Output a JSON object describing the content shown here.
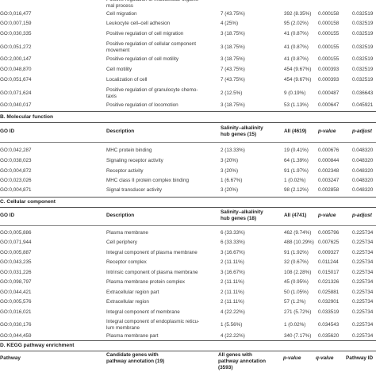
{
  "section_a": {
    "rows": [
      {
        "id": "",
        "desc": "Positive regulation of multicellular organis-",
        "desc2": "mal process",
        "hub": "",
        "all": "",
        "p": "",
        "adj": ""
      },
      {
        "id": "GO:0,016,477",
        "desc": "Cell migration",
        "hub": "7 (43.75%)",
        "all": "392 (8.35%)",
        "p": "0.000158",
        "adj": "0.032519"
      },
      {
        "id": "GO:0,007,159",
        "desc": "Leukocyte cell–cell adhesion",
        "hub": "4 (25%)",
        "all": "95 (2.02%)",
        "p": "0.000158",
        "adj": "0.032519"
      },
      {
        "id": "GO:0,030,335",
        "desc": "Positive regulation of cell migration",
        "hub": "3 (18.75%)",
        "all": "41 (0.87%)",
        "p": "0.000155",
        "adj": "0.032519"
      },
      {
        "id": "GO:0,051,272",
        "desc": "Positive regulation of cellular component",
        "desc2": "movement",
        "hub": "3 (18.75%)",
        "all": "41 (0.87%)",
        "p": "0.000155",
        "adj": "0.032519"
      },
      {
        "id": "GO:2,000,147",
        "desc": "Positive regulation of cell motility",
        "hub": "3 (18.75%)",
        "all": "41 (0.87%)",
        "p": "0.000155",
        "adj": "0.032519"
      },
      {
        "id": "GO:0,048,870",
        "desc": "Cell motility",
        "hub": "7 (43.75%)",
        "all": "454 (9.67%)",
        "p": "0.000393",
        "adj": "0.032519"
      },
      {
        "id": "GO:0,051,674",
        "desc": "Localization of cell",
        "hub": "7 (43.75%)",
        "all": "454 (9.67%)",
        "p": "0.000393",
        "adj": "0.032519"
      },
      {
        "id": "GO:0,071,624",
        "desc": "Positive regulation of granulocyte chemo-",
        "desc2": "taxis",
        "hub": "2 (12.5%)",
        "all": "9 (0.19%)",
        "p": "0.000487",
        "adj": "0.036643"
      },
      {
        "id": "GO:0,040,017",
        "desc": "Positive regulation of locomotion",
        "hub": "3 (18.75%)",
        "all": "53 (1.13%)",
        "p": "0.000647",
        "adj": "0.045921"
      }
    ]
  },
  "section_b": {
    "title": "B. Molecular function",
    "header": {
      "id": "GO ID",
      "desc": "Description",
      "hub": "Salinity–alkalinity",
      "hub2": "hub genes (15)",
      "all": "All (4619)",
      "p": "p-value",
      "adj": "p-adjust"
    },
    "rows": [
      {
        "id": "GO:0,042,287",
        "desc": "MHC protein binding",
        "hub": "2 (13.33%)",
        "all": "19 (0.41%)",
        "p": "0.000676",
        "adj": "0.048320"
      },
      {
        "id": "GO:0,038,023",
        "desc": "Signaling receptor activity",
        "hub": "3 (20%)",
        "all": "64 (1.39%)",
        "p": "0.000844",
        "adj": "0.048320"
      },
      {
        "id": "GO:0,004,872",
        "desc": "Receptor activity",
        "hub": "3 (20%)",
        "all": "91 (1.97%)",
        "p": "0.002348",
        "adj": "0.048320"
      },
      {
        "id": "GO:0,023,026",
        "desc": "MHC class II protein complex binding",
        "hub": "1 (6.67%)",
        "all": "1 (0.02%)",
        "p": "0.003247",
        "adj": "0.048320"
      },
      {
        "id": "GO:0,004,871",
        "desc": "Signal transducer activity",
        "hub": "3 (20%)",
        "all": "98 (2.12%)",
        "p": "0.002858",
        "adj": "0.048320"
      }
    ]
  },
  "section_c": {
    "title": "C. Cellular component",
    "header": {
      "id": "GO ID",
      "desc": "Description",
      "hub": "Salinity–alkalinity",
      "hub2": "hub genes (18)",
      "all": "All (4741)",
      "p": "p-value",
      "adj": "p-adjust"
    },
    "rows": [
      {
        "id": "GO:0,005,886",
        "desc": "Plasma membrane",
        "hub": "6 (33.33%)",
        "all": "462 (9.74%)",
        "p": "0.005796",
        "adj": "0.225734"
      },
      {
        "id": "GO:0,071,944",
        "desc": "Cell periphery",
        "hub": "6 (33.33%)",
        "all": "488 (10.29%)",
        "p": "0.007625",
        "adj": "0.225734"
      },
      {
        "id": "GO:0,005,887",
        "desc": "Integral component of plasma membrane",
        "hub": "3 (16.67%)",
        "all": "91 (1.92%)",
        "p": "0.009327",
        "adj": "0.225734"
      },
      {
        "id": "GO:0,043,235",
        "desc": "Receptor complex",
        "hub": "2 (11.11%)",
        "all": "32 (0.67%)",
        "p": "0.011244",
        "adj": "0.225734"
      },
      {
        "id": "GO:0,031,226",
        "desc": "Intrinsic component of plasma membrane",
        "hub": "3 (16.67%)",
        "all": "108 (2.28%)",
        "p": "0.015017",
        "adj": "0.225734"
      },
      {
        "id": "GO:0,098,797",
        "desc": "Plasma membrane protein complex",
        "hub": "2 (11.11%)",
        "all": "45 (0.95%)",
        "p": "0.021326",
        "adj": "0.225734"
      },
      {
        "id": "GO:0,044,421",
        "desc": "Extracellular region part",
        "hub": "2 (11.11%)",
        "all": "50 (1.05%)",
        "p": "0.025881",
        "adj": "0.225734"
      },
      {
        "id": "GO:0,005,576",
        "desc": "Extracellular region",
        "hub": "2 (11.11%)",
        "all": "57 (1.2%)",
        "p": "0.032901",
        "adj": "0.225734"
      },
      {
        "id": "GO:0,016,021",
        "desc": "Integral component of membrane",
        "hub": "4 (22.22%)",
        "all": "271 (5.72%)",
        "p": "0.033519",
        "adj": "0.225734"
      },
      {
        "id": "GO:0,030,176",
        "desc": "Integral component of endoplasmic reticu-",
        "desc2": "lum membrane",
        "hub": "1 (5.56%)",
        "all": "1 (0.02%)",
        "p": "0.034543",
        "adj": "0.225734"
      },
      {
        "id": "GO:0,044,459",
        "desc": "Plasma membrane part",
        "hub": "4 (22.22%)",
        "all": "340 (7.17%)",
        "p": "0.035620",
        "adj": "0.225734"
      }
    ]
  },
  "section_d": {
    "title": "D. KEGG pathway enrichment",
    "header": {
      "id": "Pathway",
      "cand": "Candidate genes with",
      "cand2": "pathway annotation (19)",
      "all": "All genes with",
      "all2": "pathway annotation",
      "all3": "(3593)",
      "p": "p-value",
      "q": "q-value",
      "pid": "Pathway ID"
    }
  }
}
